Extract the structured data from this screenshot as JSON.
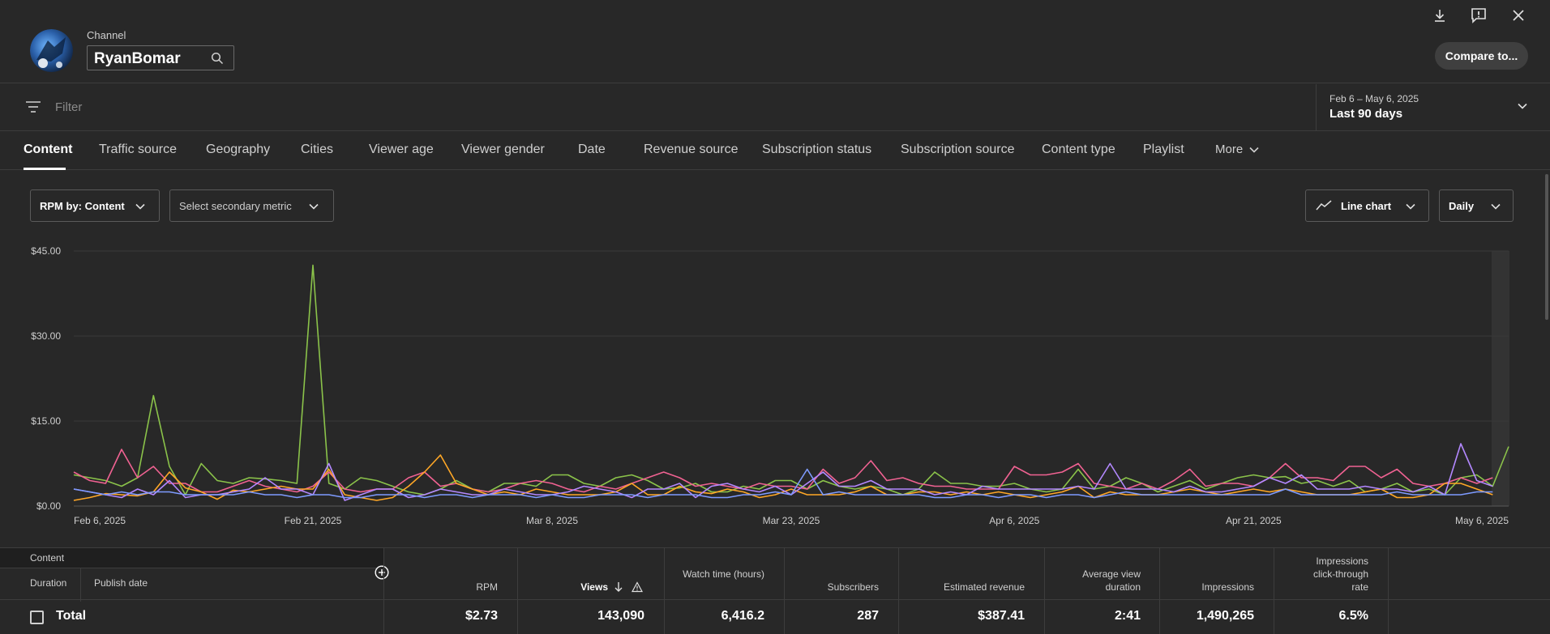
{
  "header": {
    "channel_label": "Channel",
    "channel_name": "RyanBomar",
    "compare_label": "Compare to..."
  },
  "filter": {
    "placeholder": "Filter",
    "date_range": "Feb 6 – May 6, 2025",
    "date_label": "Last 90 days"
  },
  "tabs": [
    "Content",
    "Traffic source",
    "Geography",
    "Cities",
    "Viewer age",
    "Viewer gender",
    "Date",
    "Revenue source",
    "Subscription status",
    "Subscription source",
    "Content type",
    "Playlist",
    "More"
  ],
  "controls": {
    "primary_metric": "RPM by: Content",
    "secondary_metric": "Select secondary metric",
    "chart_type": "Line chart",
    "interval": "Daily"
  },
  "chart_data": {
    "type": "line",
    "ylim": [
      0,
      45
    ],
    "y_ticks": [
      "$0.00",
      "$15.00",
      "$30.00",
      "$45.00"
    ],
    "x_ticks": [
      "Feb 6, 2025",
      "Feb 21, 2025",
      "Mar 8, 2025",
      "Mar 23, 2025",
      "Apr 6, 2025",
      "Apr 21, 2025",
      "May 6, 2025"
    ],
    "colors": [
      "#8bc34a",
      "#f06292",
      "#ffa726",
      "#b388ff",
      "#7e9bff"
    ],
    "series": [
      {
        "values": [
          5.5,
          5,
          4.5,
          3.5,
          5,
          19.5,
          7,
          2,
          7.5,
          4.5,
          4,
          5,
          4.8,
          4.5,
          4,
          42.5,
          4,
          3,
          5,
          4.5,
          3.5,
          2.5,
          2,
          3,
          4.5,
          3,
          2.5,
          4,
          4,
          3.5,
          5.5,
          5.5,
          4,
          3.5,
          5,
          5.5,
          4.5,
          3,
          3.2,
          4,
          2.5,
          2.5,
          3.5,
          3,
          4.5,
          4.5,
          3,
          4.5,
          3.5,
          3,
          3.5,
          3,
          2,
          3,
          6,
          4,
          4,
          3.5,
          3.5,
          4,
          3,
          2.5,
          3,
          6.5,
          3,
          3.5,
          5,
          4,
          2.5,
          3.5,
          4.5,
          3,
          4,
          5,
          5.5,
          5,
          5.2,
          4,
          4.5,
          3.5,
          4.5,
          2.5,
          3,
          4,
          2.5,
          3,
          2,
          5,
          5.5,
          3.5,
          10.5
        ]
      },
      {
        "values": [
          6,
          4.5,
          4,
          10,
          5,
          7,
          4,
          4,
          2.5,
          2.5,
          3.5,
          4.5,
          3.5,
          3,
          2.5,
          3.5,
          6,
          3,
          2.5,
          3,
          3,
          5,
          6,
          3.5,
          4,
          3,
          2.5,
          3,
          4,
          4.5,
          4,
          3,
          2.5,
          3.5,
          3,
          4,
          5,
          6,
          5,
          3.5,
          4,
          3.5,
          3,
          4,
          3.5,
          3.5,
          3,
          6.5,
          4,
          5,
          8,
          4.5,
          5,
          4,
          3.5,
          3.5,
          3,
          3,
          3,
          7,
          5.5,
          5.5,
          6,
          7.5,
          4,
          3.5,
          3,
          4,
          3,
          4.5,
          6.5,
          3.5,
          4,
          4,
          3.5,
          5,
          7.5,
          5,
          5,
          4.5,
          7,
          7,
          5,
          6.5,
          4,
          3.5,
          4,
          5,
          4,
          5
        ]
      },
      {
        "values": [
          1,
          1.5,
          2.2,
          2,
          1.8,
          2.5,
          6,
          3.2,
          2.5,
          1.2,
          2.8,
          2.5,
          3,
          3.5,
          3,
          3,
          6.5,
          2,
          1.5,
          1,
          1.5,
          3.5,
          6,
          9,
          4,
          3,
          2,
          2.5,
          2,
          3,
          2.5,
          2,
          2,
          2,
          2.5,
          4,
          2,
          2,
          3.5,
          2.5,
          2.2,
          3,
          2.5,
          1.5,
          2,
          3,
          2,
          2,
          2,
          2.5,
          3.5,
          2,
          2,
          2.5,
          2.5,
          2,
          2.5,
          2,
          2.5,
          2,
          1.5,
          2,
          2.5,
          3.5,
          1.5,
          2.5,
          2,
          2,
          2,
          2.5,
          3,
          2.5,
          2,
          2.5,
          3,
          2.5,
          3,
          2.5,
          2,
          2,
          2,
          2.5,
          3,
          1.5,
          1.5,
          2,
          4,
          4,
          3,
          2
        ]
      },
      {
        "values": [
          3,
          2.5,
          2,
          1.5,
          3,
          2,
          4.5,
          1.5,
          2,
          2,
          2.5,
          3,
          5,
          3,
          3,
          2,
          7.5,
          1,
          2,
          3,
          3,
          1.5,
          2,
          3,
          2.5,
          2,
          2,
          3,
          2.5,
          2,
          2,
          2.5,
          3.5,
          3,
          2.5,
          1.5,
          3,
          3,
          4,
          1.5,
          3.5,
          4,
          3,
          2.5,
          3.5,
          2,
          4,
          6,
          3.5,
          3.5,
          4.5,
          3,
          3,
          3,
          2,
          2.5,
          2,
          3.5,
          3,
          3,
          3,
          3,
          3,
          3.5,
          3,
          7.5,
          3,
          3,
          3,
          2.5,
          3.5,
          2.5,
          2.5,
          3,
          3.5,
          5,
          4,
          5.5,
          3,
          3,
          3,
          3.5,
          3,
          3,
          2.5,
          3.5,
          2,
          11,
          4.5,
          3.5
        ]
      },
      {
        "values": [
          3,
          2.5,
          2,
          2.5,
          2,
          2.5,
          2.5,
          2,
          2,
          2,
          2,
          2.5,
          2,
          2,
          1.5,
          2,
          2,
          1.5,
          1.5,
          2,
          2,
          2,
          1.5,
          2,
          2,
          1.5,
          2,
          2,
          2,
          1.5,
          2,
          1.5,
          1.5,
          2,
          2,
          2,
          1.5,
          2,
          2,
          2,
          1.5,
          1.5,
          2,
          2,
          2.5,
          2,
          6.5,
          2,
          2.5,
          2,
          2,
          2,
          2,
          2,
          1.5,
          1.5,
          2,
          2,
          1.5,
          2,
          2,
          1.5,
          2,
          2,
          1.5,
          2,
          2.5,
          2,
          2,
          2,
          2,
          2,
          2,
          2,
          2,
          2,
          3,
          2,
          2,
          2,
          2,
          2,
          2,
          2.5,
          2,
          2,
          2,
          2,
          2.5,
          2.5
        ]
      }
    ]
  },
  "table": {
    "headers": {
      "content": "Content",
      "duration": "Duration",
      "publish_date": "Publish date",
      "rpm": "RPM",
      "views": "Views",
      "watch_time": "Watch time (hours)",
      "subscribers": "Subscribers",
      "revenue": "Estimated revenue",
      "avd": "Average view duration",
      "impressions": "Impressions",
      "ctr": "Impressions click-through rate"
    },
    "total": {
      "label": "Total",
      "rpm": "$2.73",
      "views": "143,090",
      "watch_time": "6,416.2",
      "subscribers": "287",
      "revenue": "$387.41",
      "avd": "2:41",
      "impressions": "1,490,265",
      "ctr": "6.5%"
    }
  }
}
